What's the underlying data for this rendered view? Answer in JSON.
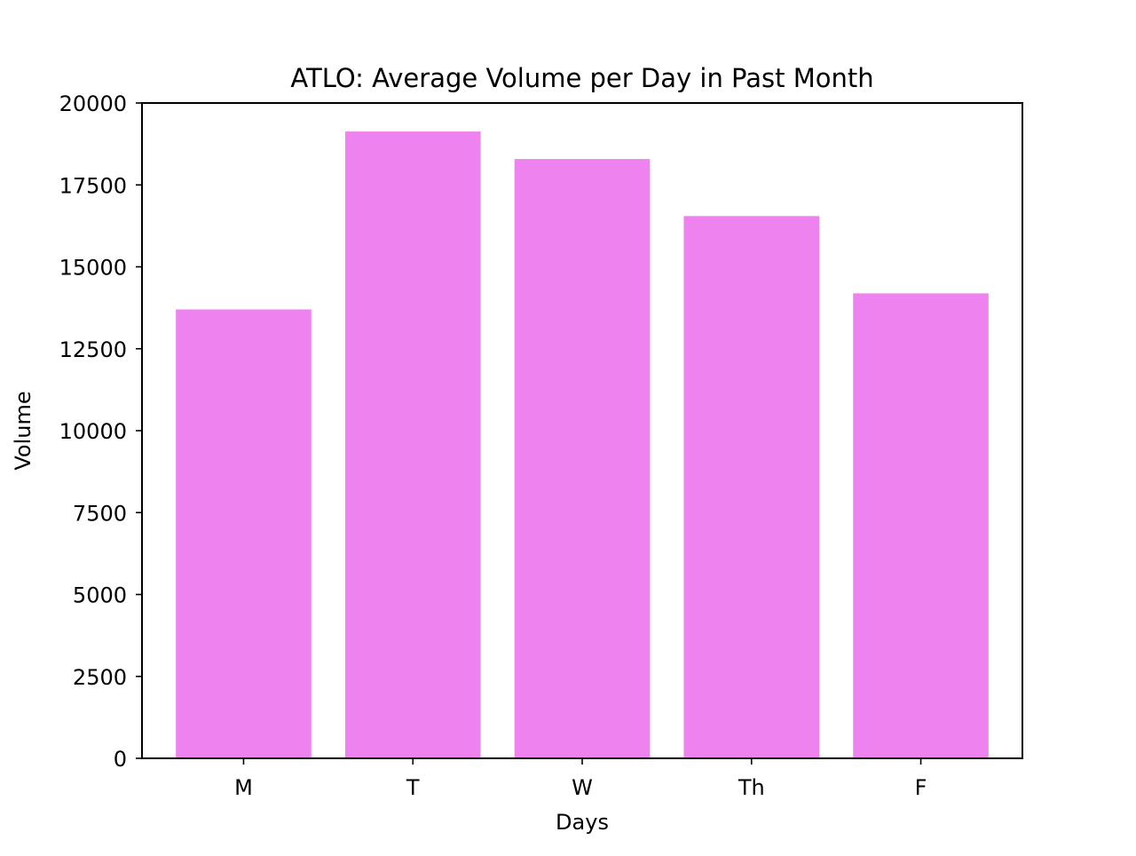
{
  "chart_data": {
    "type": "bar",
    "title": "ATLO: Average Volume per Day in Past Month",
    "xlabel": "Days",
    "ylabel": "Volume",
    "categories": [
      "M",
      "T",
      "W",
      "Th",
      "F"
    ],
    "values": [
      13700,
      19130,
      18290,
      16550,
      14190
    ],
    "ylim": [
      0,
      20000
    ],
    "yticks": [
      0,
      2500,
      5000,
      7500,
      10000,
      12500,
      15000,
      17500,
      20000
    ],
    "ytick_labels": [
      "0",
      "2500",
      "5000",
      "7500",
      "10000",
      "12500",
      "15000",
      "17500",
      "20000"
    ],
    "bar_color": "#ee82ee",
    "grid": false,
    "legend": "none"
  }
}
